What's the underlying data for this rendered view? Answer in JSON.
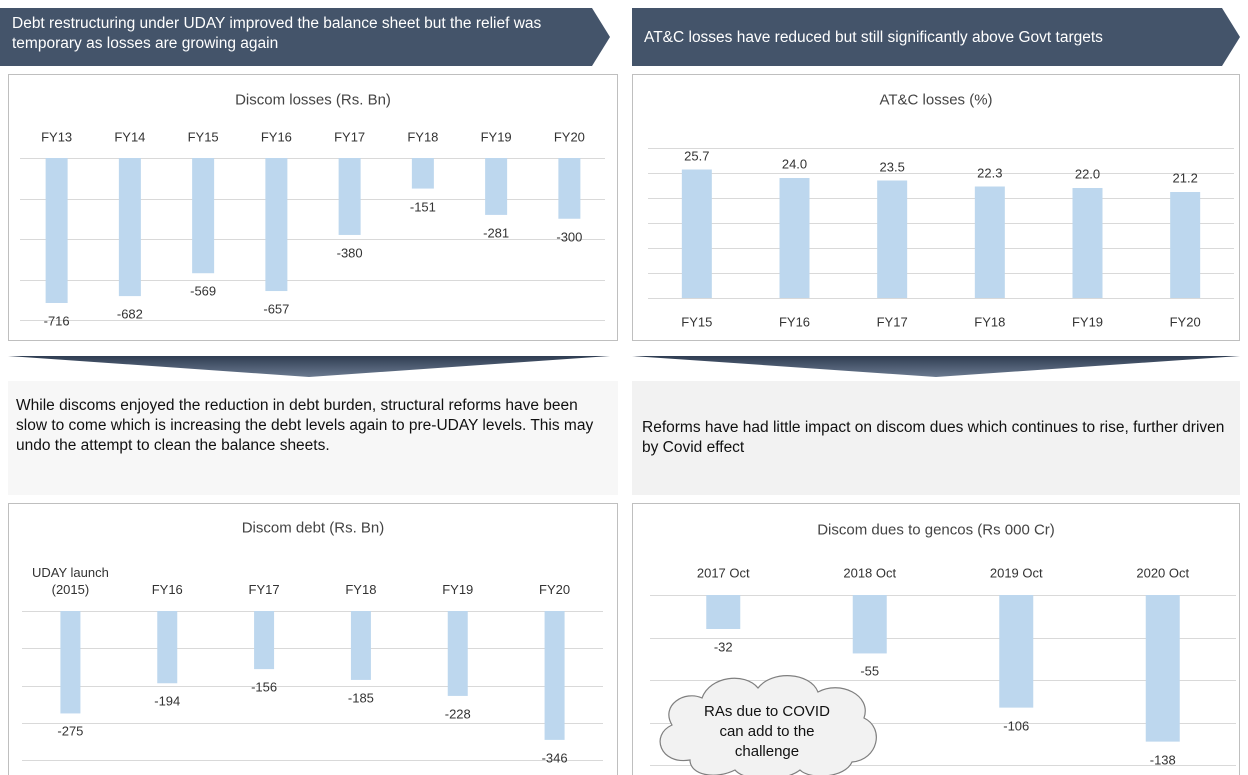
{
  "banners": [
    "Debt restructuring under UDAY improved the balance sheet but the relief was temporary as losses are growing again",
    "AT&C losses have reduced but still significantly above Govt targets"
  ],
  "notes": [
    "While discoms enjoyed the reduction in debt burden, structural reforms have been slow to come which is increasing the debt levels again to pre-UDAY levels. This may undo the attempt to clean the balance sheets.",
    "Reforms have had little impact on discom dues which continues to rise, further driven by Covid effect"
  ],
  "chart_data": [
    {
      "type": "bar",
      "title": "Discom losses (Rs. Bn)",
      "categories": [
        "FY13",
        "FY14",
        "FY15",
        "FY16",
        "FY17",
        "FY18",
        "FY19",
        "FY20"
      ],
      "values": [
        -716,
        -682,
        -569,
        -657,
        -380,
        -151,
        -281,
        -300
      ],
      "color": "#bdd7ee",
      "ylim": [
        -800,
        0
      ],
      "yticks": [
        -800,
        -600,
        -400,
        -200,
        0
      ],
      "grid": true
    },
    {
      "type": "bar",
      "title": "AT&C losses (%)",
      "categories": [
        "FY15",
        "FY16",
        "FY17",
        "FY18",
        "FY19",
        "FY20"
      ],
      "values": [
        25.7,
        24.0,
        23.5,
        22.3,
        22.0,
        21.2
      ],
      "value_labels": [
        "25.7",
        "24.0",
        "23.5",
        "22.3",
        "22.0",
        "21.2"
      ],
      "color": "#bdd7ee",
      "ylim": [
        0,
        30
      ],
      "yticks": [
        0,
        5,
        10,
        15,
        20,
        25,
        30
      ],
      "grid": true
    },
    {
      "type": "bar",
      "title": "Discom debt (Rs. Bn)",
      "categories": [
        "UDAY launch (2015)",
        "FY16",
        "FY17",
        "FY18",
        "FY19",
        "FY20"
      ],
      "values": [
        -275,
        -194,
        -156,
        -185,
        -228,
        -346
      ],
      "color": "#bdd7ee",
      "ylim": [
        -400,
        0
      ],
      "yticks": [
        -400,
        -300,
        -200,
        -100,
        0
      ],
      "grid": true
    },
    {
      "type": "bar",
      "title": "Discom dues to gencos (Rs 000 Cr)",
      "categories": [
        "2017 Oct",
        "2018 Oct",
        "2019 Oct",
        "2020 Oct"
      ],
      "values": [
        -32,
        -55,
        -106,
        -138
      ],
      "color": "#bdd7ee",
      "ylim": [
        -160,
        0
      ],
      "yticks": [
        -160,
        -120,
        -80,
        -40,
        0
      ],
      "grid": true,
      "annotation": "RAs due to COVID can add to the challenge"
    }
  ]
}
